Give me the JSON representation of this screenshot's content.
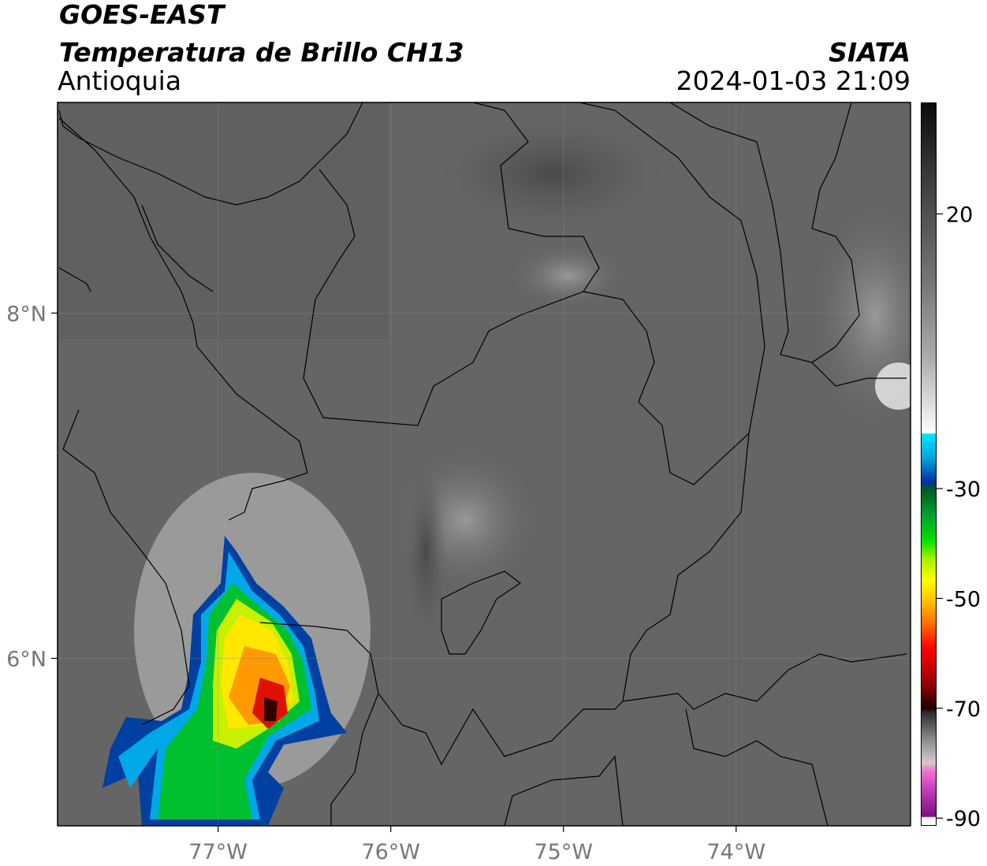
{
  "header": {
    "title": "GOES-EAST",
    "subtitle": "Temperatura de Brillo CH13",
    "region": "Antioquia",
    "source": "SIATA",
    "datetime": "2024-01-03 21:09"
  },
  "map": {
    "xlim": [
      -77.93,
      -72.99
    ],
    "ylim": [
      5.03,
      9.22
    ],
    "xticks": [
      {
        "value": -77,
        "label": "77°W"
      },
      {
        "value": -76,
        "label": "76°W"
      },
      {
        "value": -75,
        "label": "75°W"
      },
      {
        "value": -74,
        "label": "74°W"
      }
    ],
    "yticks": [
      {
        "value": 8,
        "label": "8°N"
      },
      {
        "value": 6,
        "label": "6°N"
      }
    ],
    "grid": true
  },
  "colorbar": {
    "range": [
      -91.4,
      40.3
    ],
    "ticks": [
      20,
      -30,
      -50,
      -70,
      -90
    ]
  }
}
